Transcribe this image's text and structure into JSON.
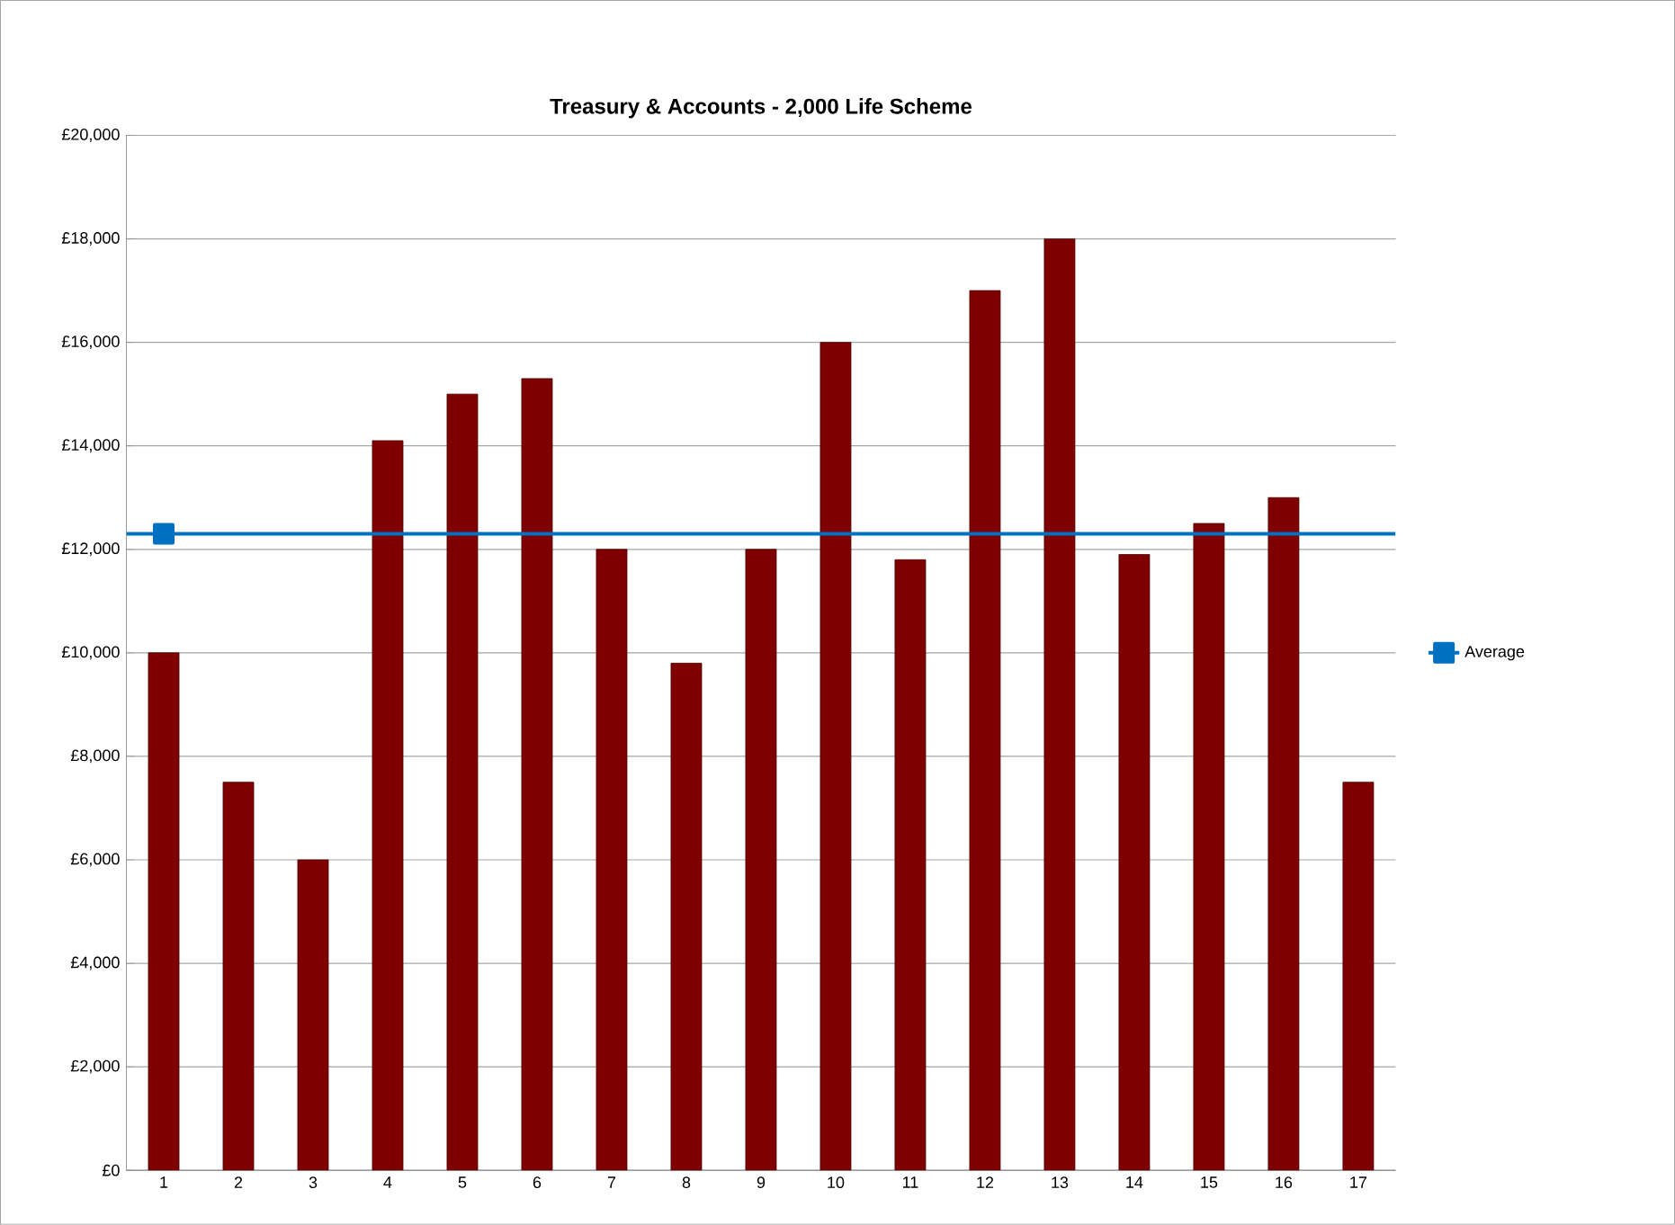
{
  "chart_data": {
    "type": "bar",
    "title": "Treasury & Accounts - 2,000 Life Scheme",
    "categories": [
      "1",
      "2",
      "3",
      "4",
      "5",
      "6",
      "7",
      "8",
      "9",
      "10",
      "11",
      "12",
      "13",
      "14",
      "15",
      "16",
      "17"
    ],
    "series": [
      {
        "color": "#7f0000",
        "values": [
          10000,
          7500,
          6000,
          14100,
          15000,
          15300,
          12000,
          9800,
          12000,
          16000,
          11800,
          17000,
          18000,
          11900,
          12500,
          13000,
          7500
        ]
      },
      {
        "type": "line",
        "name": "Average",
        "color": "#0070c0",
        "marker": "square",
        "values": [
          12300,
          null,
          null,
          null,
          null,
          null,
          null,
          null,
          null,
          null,
          null,
          null,
          null,
          null,
          null,
          null,
          null
        ]
      }
    ],
    "ref_lines": [
      {
        "axis": "y",
        "value": 12300,
        "color": "#0070c0",
        "line_style": "solid"
      }
    ],
    "ylim": [
      0,
      20000
    ],
    "yticks": [
      {
        "value": 0,
        "label": "£0"
      },
      {
        "value": 2000,
        "label": "£2,000"
      },
      {
        "value": 4000,
        "label": "£4,000"
      },
      {
        "value": 6000,
        "label": "£6,000"
      },
      {
        "value": 8000,
        "label": "£8,000"
      },
      {
        "value": 10000,
        "label": "£10,000"
      },
      {
        "value": 12000,
        "label": "£12,000"
      },
      {
        "value": 14000,
        "label": "£14,000"
      },
      {
        "value": 16000,
        "label": "£16,000"
      },
      {
        "value": 18000,
        "label": "£18,000"
      },
      {
        "value": 20000,
        "label": "£20,000"
      }
    ],
    "grid": "y",
    "legend": "right"
  }
}
